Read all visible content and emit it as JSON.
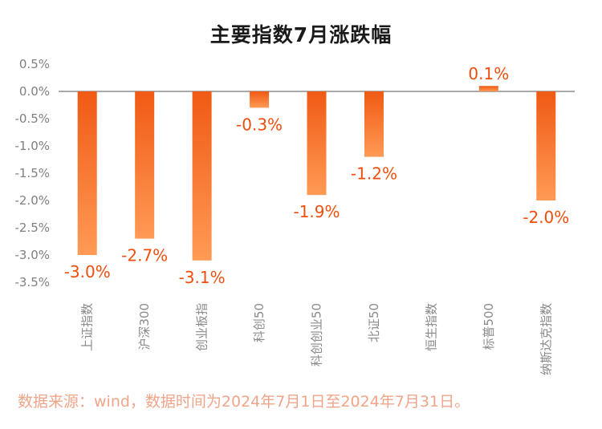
{
  "chart_data": {
    "type": "bar",
    "title": "主要指数7月涨跌幅",
    "categories": [
      "上证指数",
      "沪深300",
      "创业板指",
      "科创50",
      "科创创业50",
      "北证50",
      "恒生指数",
      "标普500",
      "纳斯达克指数"
    ],
    "values": [
      -3.0,
      -2.7,
      -3.1,
      -0.3,
      -1.9,
      -1.2,
      null,
      0.1,
      -2.0
    ],
    "value_labels": [
      "-3.0%",
      "-2.7%",
      "-3.1%",
      "-0.3%",
      "-1.9%",
      "-1.2%",
      "",
      "0.1%",
      "-2.0%"
    ],
    "y_ticks": [
      "0.5%",
      "0.0%",
      "-0.5%",
      "-1.0%",
      "-1.5%",
      "-2.0%",
      "-2.5%",
      "-3.0%",
      "-3.5%"
    ],
    "ylim": [
      -3.5,
      0.5
    ],
    "xlabel": "",
    "ylabel": "",
    "grid": false,
    "legend": "none",
    "colors": {
      "bar_top": "#f05a14",
      "bar_bottom": "#ff9a55",
      "label": "#f04e0e",
      "source": "#f0a58a"
    }
  },
  "source": "数据来源：wind，数据时间为2024年7月1日至2024年7月31日。"
}
